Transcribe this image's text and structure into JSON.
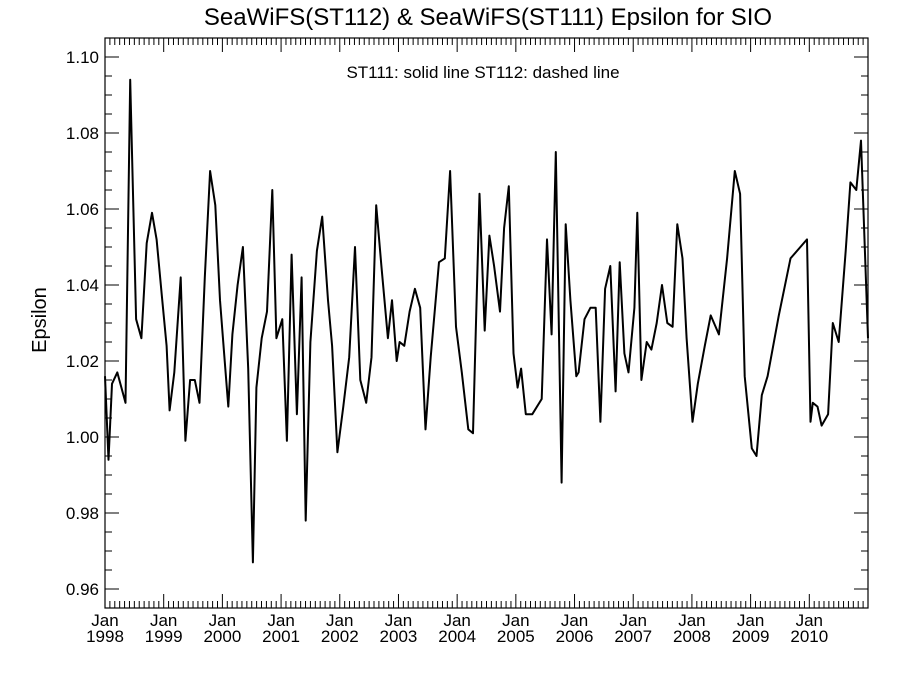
{
  "chart_data": {
    "type": "line",
    "title": "SeaWiFS(ST112) & SeaWiFS(ST111)  Epsilon for SIO",
    "annotation": "ST111: solid line   ST112: dashed line",
    "ylabel": "Epsilon",
    "xlabel": "",
    "xlim": [
      1998.0,
      2011.0
    ],
    "ylim": [
      0.955,
      1.105
    ],
    "y_ticks": [
      0.96,
      0.98,
      1.0,
      1.02,
      1.04,
      1.06,
      1.08,
      1.1
    ],
    "y_tick_labels": [
      "0.96",
      "0.98",
      "1.00",
      "1.02",
      "1.04",
      "1.06",
      "1.08",
      "1.10"
    ],
    "x_ticks": [
      {
        "x": 1998,
        "month": "Jan",
        "year": "1998"
      },
      {
        "x": 1999,
        "month": "Jan",
        "year": "1999"
      },
      {
        "x": 2000,
        "month": "Jan",
        "year": "2000"
      },
      {
        "x": 2001,
        "month": "Jan",
        "year": "2001"
      },
      {
        "x": 2002,
        "month": "Jan",
        "year": "2002"
      },
      {
        "x": 2003,
        "month": "Jan",
        "year": "2003"
      },
      {
        "x": 2004,
        "month": "Jan",
        "year": "2004"
      },
      {
        "x": 2005,
        "month": "Jan",
        "year": "2005"
      },
      {
        "x": 2006,
        "month": "Jan",
        "year": "2006"
      },
      {
        "x": 2007,
        "month": "Jan",
        "year": "2007"
      },
      {
        "x": 2008,
        "month": "Jan",
        "year": "2008"
      },
      {
        "x": 2009,
        "month": "Jan",
        "year": "2009"
      },
      {
        "x": 2010,
        "month": "Jan",
        "year": "2010"
      }
    ],
    "grid": false,
    "series": [
      {
        "name": "ST111",
        "style": "solid",
        "color": "#000000",
        "points": [
          [
            1998.0,
            1.016
          ],
          [
            1998.06,
            0.994
          ],
          [
            1998.12,
            1.014
          ],
          [
            1998.21,
            1.017
          ],
          [
            1998.35,
            1.009
          ],
          [
            1998.43,
            1.094
          ],
          [
            1998.53,
            1.031
          ],
          [
            1998.62,
            1.026
          ],
          [
            1998.71,
            1.051
          ],
          [
            1998.8,
            1.059
          ],
          [
            1998.88,
            1.052
          ],
          [
            1998.97,
            1.037
          ],
          [
            1999.05,
            1.024
          ],
          [
            1999.1,
            1.007
          ],
          [
            1999.18,
            1.017
          ],
          [
            1999.29,
            1.042
          ],
          [
            1999.37,
            0.999
          ],
          [
            1999.45,
            1.015
          ],
          [
            1999.53,
            1.015
          ],
          [
            1999.61,
            1.009
          ],
          [
            1999.7,
            1.042
          ],
          [
            1999.79,
            1.07
          ],
          [
            1999.88,
            1.061
          ],
          [
            1999.96,
            1.036
          ],
          [
            2000.05,
            1.018
          ],
          [
            2000.1,
            1.008
          ],
          [
            2000.17,
            1.027
          ],
          [
            2000.26,
            1.04
          ],
          [
            2000.35,
            1.05
          ],
          [
            2000.44,
            1.018
          ],
          [
            2000.52,
            0.967
          ],
          [
            2000.58,
            1.013
          ],
          [
            2000.67,
            1.026
          ],
          [
            2000.76,
            1.033
          ],
          [
            2000.85,
            1.065
          ],
          [
            2000.92,
            1.026
          ],
          [
            2001.02,
            1.031
          ],
          [
            2001.1,
            0.999
          ],
          [
            2001.18,
            1.048
          ],
          [
            2001.27,
            1.006
          ],
          [
            2001.35,
            1.042
          ],
          [
            2001.42,
            0.978
          ],
          [
            2001.5,
            1.025
          ],
          [
            2001.61,
            1.049
          ],
          [
            2001.7,
            1.058
          ],
          [
            2001.8,
            1.036
          ],
          [
            2001.87,
            1.024
          ],
          [
            2001.96,
            0.996
          ],
          [
            2002.06,
            1.008
          ],
          [
            2002.16,
            1.021
          ],
          [
            2002.26,
            1.05
          ],
          [
            2002.35,
            1.015
          ],
          [
            2002.45,
            1.009
          ],
          [
            2002.54,
            1.021
          ],
          [
            2002.62,
            1.061
          ],
          [
            2002.71,
            1.045
          ],
          [
            2002.82,
            1.026
          ],
          [
            2002.89,
            1.036
          ],
          [
            2002.97,
            1.02
          ],
          [
            2003.02,
            1.025
          ],
          [
            2003.1,
            1.024
          ],
          [
            2003.19,
            1.033
          ],
          [
            2003.28,
            1.039
          ],
          [
            2003.37,
            1.034
          ],
          [
            2003.46,
            1.002
          ],
          [
            2003.55,
            1.021
          ],
          [
            2003.69,
            1.046
          ],
          [
            2003.79,
            1.047
          ],
          [
            2003.88,
            1.07
          ],
          [
            2003.98,
            1.029
          ],
          [
            2004.08,
            1.017
          ],
          [
            2004.19,
            1.002
          ],
          [
            2004.27,
            1.001
          ],
          [
            2004.38,
            1.064
          ],
          [
            2004.47,
            1.028
          ],
          [
            2004.55,
            1.053
          ],
          [
            2004.63,
            1.045
          ],
          [
            2004.73,
            1.033
          ],
          [
            2004.8,
            1.055
          ],
          [
            2004.88,
            1.066
          ],
          [
            2004.96,
            1.022
          ],
          [
            2005.03,
            1.013
          ],
          [
            2005.09,
            1.018
          ],
          [
            2005.17,
            1.006
          ],
          [
            2005.28,
            1.006
          ],
          [
            2005.44,
            1.01
          ],
          [
            2005.53,
            1.052
          ],
          [
            2005.61,
            1.027
          ],
          [
            2005.68,
            1.075
          ],
          [
            2005.78,
            0.988
          ],
          [
            2005.85,
            1.056
          ],
          [
            2005.93,
            1.036
          ],
          [
            2006.03,
            1.016
          ],
          [
            2006.07,
            1.017
          ],
          [
            2006.17,
            1.031
          ],
          [
            2006.27,
            1.034
          ],
          [
            2006.36,
            1.034
          ],
          [
            2006.44,
            1.004
          ],
          [
            2006.52,
            1.039
          ],
          [
            2006.61,
            1.045
          ],
          [
            2006.7,
            1.012
          ],
          [
            2006.77,
            1.046
          ],
          [
            2006.85,
            1.022
          ],
          [
            2006.92,
            1.017
          ],
          [
            2007.02,
            1.034
          ],
          [
            2007.07,
            1.059
          ],
          [
            2007.14,
            1.015
          ],
          [
            2007.23,
            1.025
          ],
          [
            2007.31,
            1.023
          ],
          [
            2007.4,
            1.03
          ],
          [
            2007.49,
            1.04
          ],
          [
            2007.58,
            1.03
          ],
          [
            2007.67,
            1.029
          ],
          [
            2007.75,
            1.056
          ],
          [
            2007.84,
            1.047
          ],
          [
            2007.91,
            1.026
          ],
          [
            2008.01,
            1.004
          ],
          [
            2008.1,
            1.014
          ],
          [
            2008.22,
            1.024
          ],
          [
            2008.32,
            1.032
          ],
          [
            2008.46,
            1.027
          ],
          [
            2008.6,
            1.047
          ],
          [
            2008.73,
            1.07
          ],
          [
            2008.82,
            1.064
          ],
          [
            2008.9,
            1.016
          ],
          [
            2009.02,
            0.997
          ],
          [
            2009.1,
            0.995
          ],
          [
            2009.19,
            1.011
          ],
          [
            2009.29,
            1.016
          ],
          [
            2009.48,
            1.032
          ],
          [
            2009.68,
            1.047
          ],
          [
            2009.96,
            1.052
          ],
          [
            2010.02,
            1.004
          ],
          [
            2010.06,
            1.009
          ],
          [
            2010.14,
            1.008
          ],
          [
            2010.21,
            1.003
          ],
          [
            2010.32,
            1.006
          ],
          [
            2010.4,
            1.03
          ],
          [
            2010.5,
            1.025
          ],
          [
            2010.62,
            1.049
          ],
          [
            2010.7,
            1.067
          ],
          [
            2010.8,
            1.065
          ],
          [
            2010.88,
            1.078
          ],
          [
            2011.0,
            1.026
          ]
        ]
      }
    ]
  }
}
